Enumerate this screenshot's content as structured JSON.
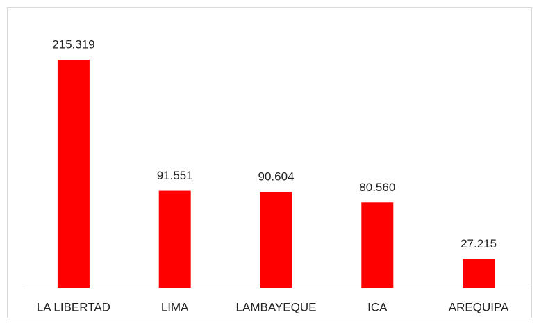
{
  "chart_data": {
    "type": "bar",
    "categories": [
      "LA LIBERTAD",
      "LIMA",
      "LAMBAYEQUE",
      "ICA",
      "AREQUIPA"
    ],
    "values": [
      215319,
      91551,
      90604,
      80560,
      27215
    ],
    "value_labels": [
      "215.319",
      "91.551",
      "90.604",
      "80.560",
      "27.215"
    ],
    "color": "#ff0000"
  }
}
